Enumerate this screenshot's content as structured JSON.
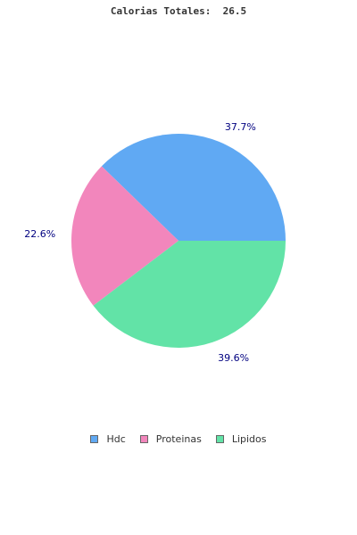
{
  "chart_data": {
    "type": "pie",
    "title": "Calorias Totales:  26.5",
    "categories": [
      "Hdc",
      "Proteinas",
      "Lipidos"
    ],
    "values": [
      37.7,
      22.6,
      39.6
    ],
    "labels": [
      "37.7%",
      "22.6%",
      "39.6%"
    ],
    "colors": [
      "#60a9f3",
      "#f286bc",
      "#62e3a7"
    ],
    "legend": "bottom"
  }
}
